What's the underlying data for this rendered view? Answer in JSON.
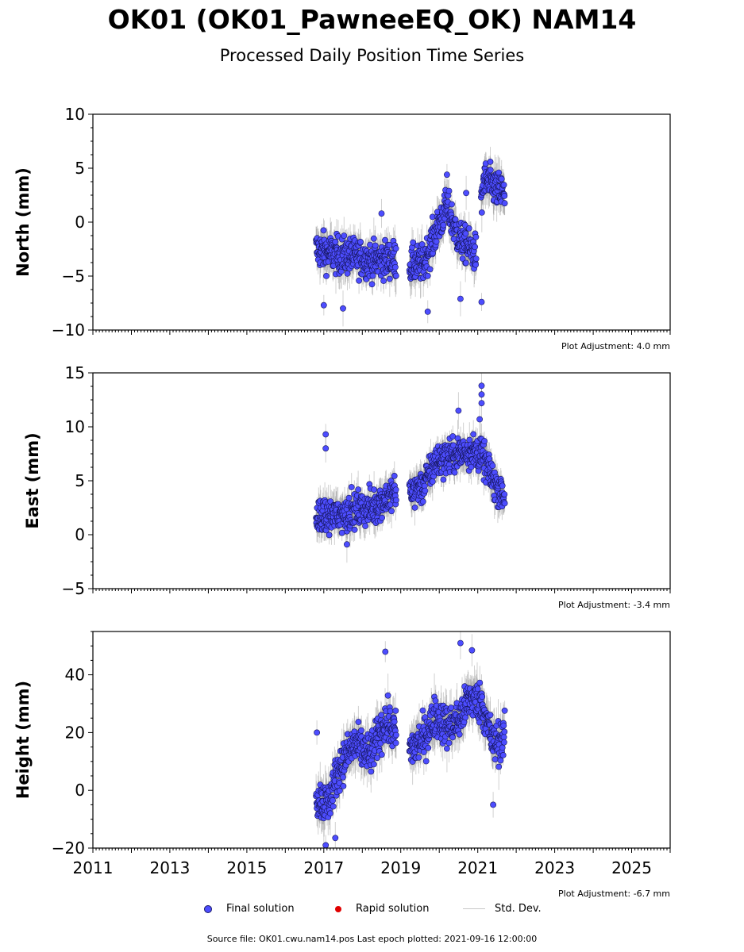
{
  "header": {
    "title": "OK01 (OK01_PawneeEQ_OK) NAM14",
    "subtitle": "Processed Daily Position Time Series"
  },
  "legend": {
    "final": "Final solution",
    "rapid": "Rapid solution",
    "stddev": "Std. Dev.",
    "final_color": "#4d4dff",
    "rapid_color": "#e00000"
  },
  "footer": {
    "source": "Source file: OK01.cwu.nam14.pos  Last epoch plotted: 2021-09-16 12:00:00"
  },
  "chart_data": [
    {
      "type": "scatter",
      "ylabel": "North (mm)",
      "ylim": [
        -10,
        10
      ],
      "yticks": [
        -10,
        -5,
        0,
        5,
        10
      ],
      "ytick_labels": [
        "−10",
        "−5",
        "0",
        "5",
        "10"
      ],
      "xlim": [
        2011,
        2026
      ],
      "adjustment": "Plot Adjustment: 4.0 mm",
      "anchors": [
        [
          2016.8,
          -2.5
        ],
        [
          2017.3,
          -3.0
        ],
        [
          2017.8,
          -3.2
        ],
        [
          2018.3,
          -3.6
        ],
        [
          2018.8,
          -3.4
        ],
        [
          2019.25,
          -4.0
        ],
        [
          2019.6,
          -3.8
        ],
        [
          2019.9,
          -1.0
        ],
        [
          2020.2,
          1.5
        ],
        [
          2020.5,
          -1.5
        ],
        [
          2020.8,
          -2.5
        ],
        [
          2021.0,
          -3.0
        ],
        [
          2021.15,
          4.0
        ],
        [
          2021.7,
          2.5
        ]
      ],
      "spread": 1.2,
      "err": 1.3,
      "outliers": [
        [
          2017.0,
          -7.7
        ],
        [
          2017.5,
          -8.0
        ],
        [
          2019.7,
          -8.3
        ],
        [
          2020.2,
          4.4
        ],
        [
          2020.55,
          -7.1
        ],
        [
          2020.7,
          2.7
        ],
        [
          2021.1,
          -7.4
        ],
        [
          2018.5,
          0.8
        ]
      ]
    },
    {
      "type": "scatter",
      "ylabel": "East (mm)",
      "ylim": [
        -5,
        15
      ],
      "yticks": [
        -5,
        0,
        5,
        10,
        15
      ],
      "ytick_labels": [
        "−5",
        "0",
        "5",
        "10",
        "15"
      ],
      "xlim": [
        2011,
        2026
      ],
      "adjustment": "Plot Adjustment: -3.4 mm",
      "anchors": [
        [
          2016.8,
          1.5
        ],
        [
          2017.3,
          1.8
        ],
        [
          2017.8,
          2.2
        ],
        [
          2018.3,
          2.6
        ],
        [
          2018.8,
          3.8
        ],
        [
          2019.25,
          4.0
        ],
        [
          2019.6,
          4.6
        ],
        [
          2019.9,
          6.8
        ],
        [
          2020.2,
          7.2
        ],
        [
          2020.5,
          7.5
        ],
        [
          2020.8,
          7.8
        ],
        [
          2021.1,
          7.4
        ],
        [
          2021.4,
          5.0
        ],
        [
          2021.7,
          3.5
        ]
      ],
      "spread": 1.1,
      "err": 1.2,
      "outliers": [
        [
          2017.05,
          9.3
        ],
        [
          2017.05,
          8.0
        ],
        [
          2020.5,
          11.5
        ],
        [
          2021.1,
          13.8
        ],
        [
          2021.1,
          13.0
        ],
        [
          2021.1,
          12.2
        ],
        [
          2021.05,
          10.7
        ],
        [
          2017.6,
          -0.9
        ]
      ]
    },
    {
      "type": "scatter",
      "ylabel": "Height (mm)",
      "ylim": [
        -20,
        55
      ],
      "yticks": [
        -20,
        0,
        20,
        40
      ],
      "ytick_labels": [
        "−20",
        "0",
        "20",
        "40"
      ],
      "xlim": [
        2011,
        2026
      ],
      "adjustment": "Plot Adjustment: -6.7 mm",
      "xticks": [
        2011,
        2013,
        2015,
        2017,
        2019,
        2021,
        2023,
        2025
      ],
      "xtick_labels": [
        "2011",
        "2013",
        "2015",
        "2017",
        "2019",
        "2021",
        "2023",
        "2025"
      ],
      "anchors": [
        [
          2016.8,
          -2.0
        ],
        [
          2017.1,
          -5.0
        ],
        [
          2017.4,
          8.0
        ],
        [
          2017.8,
          16.0
        ],
        [
          2018.2,
          12.0
        ],
        [
          2018.6,
          24.0
        ],
        [
          2018.85,
          20.0
        ],
        [
          2019.25,
          14.0
        ],
        [
          2019.6,
          18.0
        ],
        [
          2019.9,
          26.0
        ],
        [
          2020.2,
          22.0
        ],
        [
          2020.5,
          24.0
        ],
        [
          2020.8,
          32.0
        ],
        [
          2021.1,
          30.0
        ],
        [
          2021.4,
          16.0
        ],
        [
          2021.7,
          18.0
        ]
      ],
      "spread": 5.0,
      "err": 5.5,
      "outliers": [
        [
          2018.6,
          48.0
        ],
        [
          2020.55,
          51.0
        ],
        [
          2020.85,
          48.5
        ],
        [
          2017.05,
          -19.0
        ],
        [
          2017.3,
          -16.5
        ],
        [
          2021.4,
          -5.0
        ],
        [
          2016.82,
          20.0
        ]
      ]
    }
  ]
}
